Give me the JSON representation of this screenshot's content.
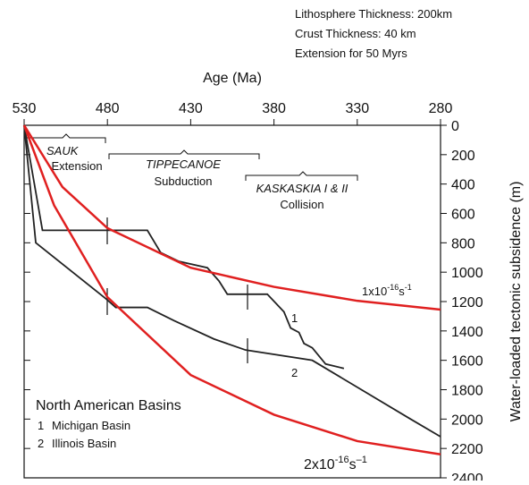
{
  "chart_data": {
    "type": "line",
    "header": [
      "Lithosphere Thickness: 200km",
      "Crust Thickness: 40 km",
      "Extension for 50 Myrs"
    ],
    "xlabel": "Age (Ma)",
    "ylabel": "Water-loaded tectonic subsidence (m)",
    "xlim": [
      530,
      280
    ],
    "xticks": [
      530,
      480,
      430,
      380,
      330,
      280
    ],
    "ylim": [
      0,
      2400
    ],
    "yticks": [
      0,
      200,
      400,
      600,
      800,
      1000,
      1200,
      1400,
      1600,
      1800,
      2000,
      2200,
      2400
    ],
    "annotations": [
      {
        "name": "SAUK",
        "event": "Extension"
      },
      {
        "name": "TIPPECANOE",
        "event": "Subduction"
      },
      {
        "name": "KASKASKIA I & II",
        "event": "Collision"
      }
    ],
    "legend_title": "North American Basins",
    "series": [
      {
        "name": "Michigan Basin",
        "label": "1",
        "color": "#222222",
        "x": [
          530,
          519,
          456,
          448,
          437,
          420,
          413,
          408,
          384,
          374,
          370,
          365,
          362,
          357,
          349,
          338
        ],
        "values": [
          0,
          715,
          715,
          867,
          927,
          970,
          1060,
          1150,
          1150,
          1270,
          1380,
          1410,
          1485,
          1515,
          1625,
          1655
        ]
      },
      {
        "name": "Illinois Basin",
        "label": "2",
        "color": "#222222",
        "x": [
          530,
          523,
          481,
          475,
          456,
          440,
          416,
          397,
          357,
          298,
          280
        ],
        "values": [
          0,
          800,
          1180,
          1240,
          1240,
          1330,
          1455,
          1530,
          1600,
          2000,
          2120
        ]
      },
      {
        "rate": {
          "base": "1x10",
          "exp": "-16",
          "unit": "s",
          "unit_exp": "-1"
        },
        "color": "#e02020",
        "x": [
          530,
          507,
          480,
          430,
          380,
          330,
          280
        ],
        "values": [
          0,
          420,
          700,
          970,
          1100,
          1195,
          1255
        ]
      },
      {
        "rate": {
          "base": "2x10",
          "exp": "-16",
          "unit": "s",
          "unit_exp": "–1"
        },
        "color": "#e02020",
        "x": [
          530,
          512,
          480,
          430,
          380,
          330,
          280
        ],
        "values": [
          0,
          545,
          1170,
          1700,
          1970,
          2150,
          2240
        ]
      }
    ]
  }
}
